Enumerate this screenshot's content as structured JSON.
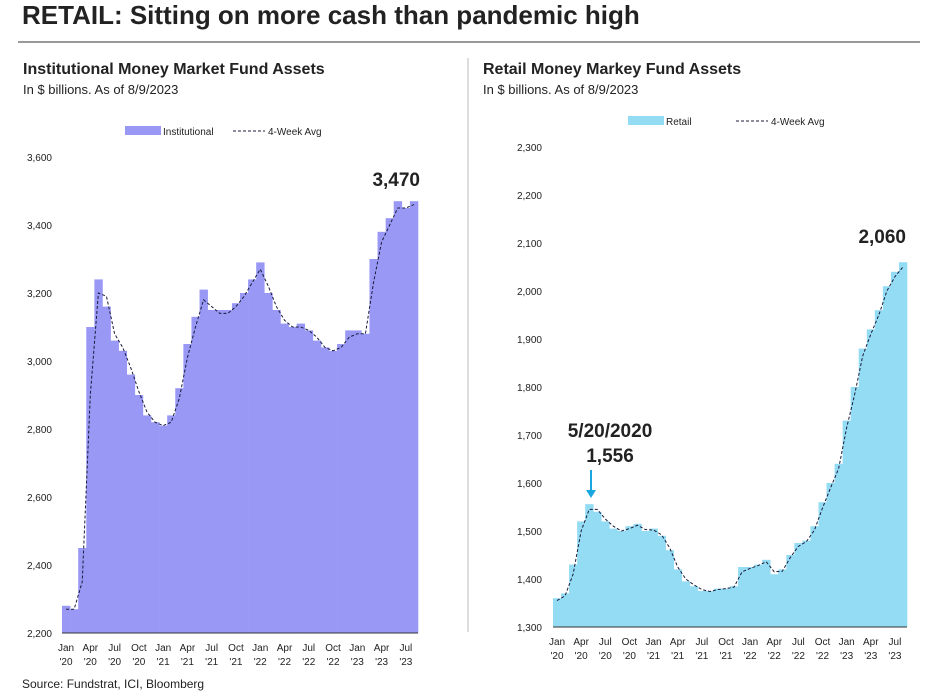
{
  "header": {
    "title": "RETAIL: Sitting on more cash than pandemic high"
  },
  "source": "Source: Fundstrat, ICI, Bloomberg",
  "chart_data": [
    {
      "type": "bar",
      "title": "Institutional Money Market Fund Assets",
      "subtitle": "In $ billions. As of 8/9/2023",
      "categories": [
        [
          "Jan",
          "'20"
        ],
        null,
        null,
        [
          "Apr",
          "'20"
        ],
        null,
        null,
        [
          "Jul",
          "'20"
        ],
        null,
        null,
        [
          "Oct",
          "'20"
        ],
        null,
        null,
        [
          "Jan",
          "'21"
        ],
        null,
        null,
        [
          "Apr",
          "'21"
        ],
        null,
        null,
        [
          "Jul",
          "'21"
        ],
        null,
        null,
        [
          "Oct",
          "'21"
        ],
        null,
        null,
        [
          "Jan",
          "'22"
        ],
        null,
        null,
        [
          "Apr",
          "'22"
        ],
        null,
        null,
        [
          "Jul",
          "'22"
        ],
        null,
        null,
        [
          "Oct",
          "'22"
        ],
        null,
        null,
        [
          "Jan",
          "'23"
        ],
        null,
        null,
        [
          "Apr",
          "'23"
        ],
        null,
        null,
        [
          "Jul",
          "'23"
        ],
        null
      ],
      "series": [
        {
          "name": "Institutional",
          "color": "#9999f5",
          "values": [
            2280,
            2270,
            2450,
            3100,
            3240,
            3160,
            3060,
            3030,
            2960,
            2900,
            2840,
            2820,
            2810,
            2840,
            2920,
            3050,
            3130,
            3210,
            3150,
            3150,
            3150,
            3170,
            3200,
            3240,
            3290,
            3200,
            3150,
            3110,
            3100,
            3110,
            3090,
            3060,
            3040,
            3030,
            3050,
            3090,
            3090,
            3080,
            3300,
            3380,
            3420,
            3470,
            3450,
            3470
          ]
        },
        {
          "name": "4-Week Avg",
          "color": "#1a1a3a",
          "dashed": true,
          "values": [
            2270,
            2270,
            2350,
            2900,
            3200,
            3190,
            3080,
            3040,
            2980,
            2910,
            2850,
            2820,
            2810,
            2820,
            2890,
            3010,
            3100,
            3180,
            3160,
            3140,
            3140,
            3160,
            3190,
            3230,
            3270,
            3220,
            3160,
            3120,
            3100,
            3100,
            3090,
            3070,
            3040,
            3030,
            3040,
            3070,
            3080,
            3080,
            3230,
            3350,
            3400,
            3450,
            3450,
            3460
          ]
        }
      ],
      "ylim": [
        2200,
        3600
      ],
      "yticks": [
        {
          "value": 2200,
          "label": "2,200"
        },
        {
          "value": 2400,
          "label": "2,400"
        },
        {
          "value": 2600,
          "label": "2,600"
        },
        {
          "value": 2800,
          "label": "2,800"
        },
        {
          "value": 3000,
          "label": "3,000"
        },
        {
          "value": 3200,
          "label": "3,200"
        },
        {
          "value": 3400,
          "label": "3,400"
        },
        {
          "value": 3600,
          "label": "3,600"
        }
      ],
      "annotations": [
        {
          "text": [
            "3,470"
          ],
          "color": "#0000cc"
        }
      ]
    },
    {
      "type": "bar",
      "title": "Retail Money Markey Fund Assets",
      "subtitle": "In $ billions. As of 8/9/2023",
      "categories": [
        [
          "Jan",
          "'20"
        ],
        null,
        null,
        [
          "Apr",
          "'20"
        ],
        null,
        null,
        [
          "Jul",
          "'20"
        ],
        null,
        null,
        [
          "Oct",
          "'20"
        ],
        null,
        null,
        [
          "Jan",
          "'21"
        ],
        null,
        null,
        [
          "Apr",
          "'21"
        ],
        null,
        null,
        [
          "Jul",
          "'21"
        ],
        null,
        null,
        [
          "Oct",
          "'21"
        ],
        null,
        null,
        [
          "Jan",
          "'22"
        ],
        null,
        null,
        [
          "Apr",
          "'22"
        ],
        null,
        null,
        [
          "Jul",
          "'22"
        ],
        null,
        null,
        [
          "Oct",
          "'22"
        ],
        null,
        null,
        [
          "Jan",
          "'23"
        ],
        null,
        null,
        [
          "Apr",
          "'23"
        ],
        null,
        null,
        [
          "Jul",
          "'23"
        ],
        null
      ],
      "series": [
        {
          "name": "Retail",
          "color": "#93dcf3",
          "values": [
            1360,
            1370,
            1430,
            1520,
            1556,
            1540,
            1520,
            1505,
            1500,
            1510,
            1515,
            1500,
            1505,
            1490,
            1460,
            1420,
            1395,
            1385,
            1375,
            1375,
            1380,
            1380,
            1385,
            1425,
            1425,
            1430,
            1440,
            1410,
            1420,
            1450,
            1475,
            1480,
            1510,
            1560,
            1600,
            1640,
            1730,
            1800,
            1880,
            1920,
            1960,
            2010,
            2040,
            2060
          ]
        },
        {
          "name": "4-Week Avg",
          "color": "#1a1a3a",
          "dashed": true,
          "values": [
            1355,
            1365,
            1410,
            1500,
            1545,
            1545,
            1525,
            1510,
            1500,
            1505,
            1512,
            1503,
            1502,
            1492,
            1465,
            1425,
            1400,
            1388,
            1378,
            1374,
            1378,
            1380,
            1383,
            1415,
            1422,
            1428,
            1436,
            1415,
            1416,
            1445,
            1468,
            1478,
            1502,
            1548,
            1590,
            1630,
            1715,
            1785,
            1865,
            1910,
            1950,
            2000,
            2030,
            2050
          ]
        }
      ],
      "ylim": [
        1300,
        2300
      ],
      "yticks": [
        {
          "value": 1300,
          "label": "1,300"
        },
        {
          "value": 1400,
          "label": "1,400"
        },
        {
          "value": 1500,
          "label": "1,500"
        },
        {
          "value": 1600,
          "label": "1,600"
        },
        {
          "value": 1700,
          "label": "1,700"
        },
        {
          "value": 1800,
          "label": "1,800"
        },
        {
          "value": 1900,
          "label": "1,900"
        },
        {
          "value": 2000,
          "label": "2,000"
        },
        {
          "value": 2100,
          "label": "2,100"
        },
        {
          "value": 2200,
          "label": "2,200"
        },
        {
          "value": 2300,
          "label": "2,300"
        }
      ],
      "annotations": [
        {
          "text": [
            "2,060"
          ],
          "color": "#1aa7e0"
        },
        {
          "text": [
            "5/20/2020",
            "1,556"
          ],
          "color": "#1aa7e0"
        }
      ]
    }
  ]
}
